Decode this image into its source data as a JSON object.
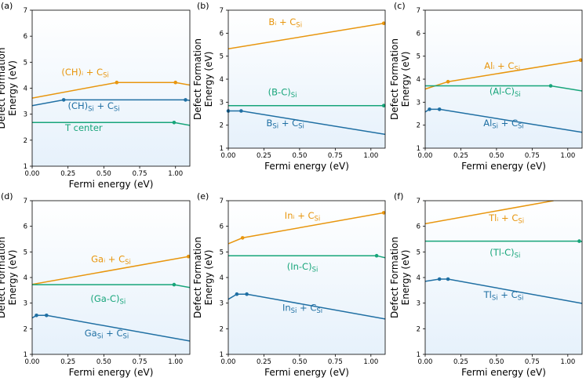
{
  "colors": {
    "orange": "#E8960E",
    "blue": "#1F6FA3",
    "green": "#17A57A",
    "panel_top": "#ffffff",
    "panel_bottom": "#e6f1fb"
  },
  "chart_data": [
    {
      "type": "line",
      "panel_label": "(a)",
      "xlabel": "Fermi energy (eV)",
      "ylabel": "Defect Formation Energy (eV)",
      "xlim": [
        0,
        1.1
      ],
      "ylim": [
        1,
        7
      ],
      "xticks": [
        "0.00",
        "0.25",
        "0.50",
        "0.75",
        "1.00"
      ],
      "xtick_values": [
        0,
        0.25,
        0.5,
        0.75,
        1.0
      ],
      "yticks": [
        "1",
        "2",
        "3",
        "4",
        "5",
        "6",
        "7"
      ],
      "ytick_values": [
        1,
        2,
        3,
        4,
        5,
        6,
        7
      ],
      "series": [
        {
          "name": "(CH)i + CSi",
          "color": "orange",
          "x": [
            0,
            0.59,
            1.0,
            1.1
          ],
          "y": [
            3.62,
            4.22,
            4.22,
            4.12
          ],
          "markers": [
            1,
            2
          ]
        },
        {
          "name": "(CH)Si + CSi",
          "color": "blue",
          "x": [
            0,
            0.22,
            1.07,
            1.1
          ],
          "y": [
            3.33,
            3.55,
            3.55,
            3.53
          ],
          "markers": [
            1,
            2
          ]
        },
        {
          "name": "T center",
          "color": "green",
          "x": [
            0,
            0.99,
            1.1
          ],
          "y": [
            2.68,
            2.68,
            2.57
          ],
          "markers": [
            1
          ]
        }
      ],
      "annotations": [
        {
          "text": "(CH)ᵢ + C",
          "sub": "Si",
          "color": "orange",
          "x": 0.37,
          "y": 4.5
        },
        {
          "text": "(CH)",
          "sub": "Si",
          "after": " + C",
          "sub2": "Si",
          "color": "blue",
          "x": 0.43,
          "y": 3.2
        },
        {
          "text": "T center",
          "color": "green",
          "x": 0.36,
          "y": 2.35
        }
      ]
    },
    {
      "type": "line",
      "panel_label": "(b)",
      "xlabel": "Fermi energy (eV)",
      "ylabel": "Defect Formation Energy (eV)",
      "xlim": [
        0,
        1.1
      ],
      "ylim": [
        1,
        7
      ],
      "xticks": [
        "0.00",
        "0.25",
        "0.50",
        "0.75",
        "1.00"
      ],
      "xtick_values": [
        0,
        0.25,
        0.5,
        0.75,
        1.0
      ],
      "yticks": [
        "1",
        "2",
        "3",
        "4",
        "5",
        "6",
        "7"
      ],
      "ytick_values": [
        1,
        2,
        3,
        4,
        5,
        6,
        7
      ],
      "series": [
        {
          "name": "Bi + CSi",
          "color": "orange",
          "x": [
            0,
            1.09
          ],
          "y": [
            5.32,
            6.43
          ],
          "markers": [
            1
          ]
        },
        {
          "name": "(B-C)Si",
          "color": "green",
          "x": [
            0,
            1.09,
            1.1
          ],
          "y": [
            2.85,
            2.85,
            2.84
          ],
          "markers": [
            1
          ]
        },
        {
          "name": "BSi + CSi",
          "color": "blue",
          "x": [
            0,
            0.09,
            1.1
          ],
          "y": [
            2.62,
            2.62,
            1.6
          ],
          "markers": [
            0,
            1
          ]
        }
      ],
      "annotations": [
        {
          "text": "Bᵢ + C",
          "sub": "Si",
          "color": "orange",
          "x": 0.4,
          "y": 6.35
        },
        {
          "text": "(B-C)",
          "sub": "Si",
          "color": "green",
          "x": 0.38,
          "y": 3.3
        },
        {
          "text": "B",
          "sub": "Si",
          "after": " + C",
          "sub2": "Si",
          "color": "blue",
          "x": 0.4,
          "y": 1.95
        }
      ]
    },
    {
      "type": "line",
      "panel_label": "(c)",
      "xlabel": "Fermi energy (eV)",
      "ylabel": "Defect Formation Energy (eV)",
      "xlim": [
        0,
        1.1
      ],
      "ylim": [
        1,
        7
      ],
      "xticks": [
        "0.00",
        "0.25",
        "0.50",
        "0.75",
        "1.00"
      ],
      "xtick_values": [
        0,
        0.25,
        0.5,
        0.75,
        1.0
      ],
      "yticks": [
        "1",
        "2",
        "3",
        "4",
        "5",
        "6",
        "7"
      ],
      "ytick_values": [
        1,
        2,
        3,
        4,
        5,
        6,
        7
      ],
      "series": [
        {
          "name": "Ali + CSi",
          "color": "orange",
          "x": [
            0,
            0.16,
            1.09
          ],
          "y": [
            3.57,
            3.89,
            4.83
          ],
          "markers": [
            1,
            2
          ]
        },
        {
          "name": "(Al-C)Si",
          "color": "green",
          "x": [
            0,
            0.88,
            1.1
          ],
          "y": [
            3.71,
            3.71,
            3.49
          ],
          "markers": [
            1
          ]
        },
        {
          "name": "AlSi + CSi",
          "color": "blue",
          "x": [
            0,
            0.03,
            0.1,
            1.1
          ],
          "y": [
            2.57,
            2.69,
            2.69,
            1.69
          ],
          "markers": [
            1,
            2
          ]
        }
      ],
      "annotations": [
        {
          "text": "Alᵢ + C",
          "sub": "Si",
          "color": "orange",
          "x": 0.54,
          "y": 4.45
        },
        {
          "text": "(Al-C)",
          "sub": "Si",
          "color": "green",
          "x": 0.56,
          "y": 3.33
        },
        {
          "text": "Al",
          "sub": "Si",
          "after": " + C",
          "sub2": "Si",
          "color": "blue",
          "x": 0.55,
          "y": 1.95
        }
      ]
    },
    {
      "type": "line",
      "panel_label": "(d)",
      "xlabel": "Fermi energy (eV)",
      "ylabel": "Defect Formation Energy (eV)",
      "xlim": [
        0,
        1.1
      ],
      "ylim": [
        1,
        7
      ],
      "xticks": [
        "0.00",
        "0.25",
        "0.50",
        "0.75",
        "1.00"
      ],
      "xtick_values": [
        0,
        0.25,
        0.5,
        0.75,
        1.0
      ],
      "yticks": [
        "1",
        "2",
        "3",
        "4",
        "5",
        "6",
        "7"
      ],
      "ytick_values": [
        1,
        2,
        3,
        4,
        5,
        6,
        7
      ],
      "series": [
        {
          "name": "Gai + CSi",
          "color": "orange",
          "x": [
            0,
            1.09
          ],
          "y": [
            3.73,
            4.82
          ],
          "markers": [
            1
          ]
        },
        {
          "name": "(Ga-C)Si",
          "color": "green",
          "x": [
            0,
            0.99,
            1.1
          ],
          "y": [
            3.72,
            3.72,
            3.61
          ],
          "markers": [
            1
          ]
        },
        {
          "name": "GaSi + CSi",
          "color": "blue",
          "x": [
            0,
            0.03,
            0.1,
            1.1
          ],
          "y": [
            2.42,
            2.52,
            2.52,
            1.52
          ],
          "markers": [
            1,
            2
          ]
        }
      ],
      "annotations": [
        {
          "text": "Gaᵢ + C",
          "sub": "Si",
          "color": "orange",
          "x": 0.55,
          "y": 4.6
        },
        {
          "text": "(Ga-C)",
          "sub": "Si",
          "color": "green",
          "x": 0.53,
          "y": 3.05
        },
        {
          "text": "Ga",
          "sub": "Si",
          "after": " + C",
          "sub2": "Si",
          "color": "blue",
          "x": 0.52,
          "y": 1.7
        }
      ]
    },
    {
      "type": "line",
      "panel_label": "(e)",
      "xlabel": "Fermi energy (eV)",
      "ylabel": "Defect Formation Energy (eV)",
      "xlim": [
        0,
        1.1
      ],
      "ylim": [
        1,
        7
      ],
      "xticks": [
        "0.00",
        "0.25",
        "0.50",
        "0.75",
        "1.00"
      ],
      "xtick_values": [
        0,
        0.25,
        0.5,
        0.75,
        1.0
      ],
      "yticks": [
        "1",
        "2",
        "3",
        "4",
        "5",
        "6",
        "7"
      ],
      "ytick_values": [
        1,
        2,
        3,
        4,
        5,
        6,
        7
      ],
      "series": [
        {
          "name": "Ini + CSi",
          "color": "orange",
          "x": [
            0,
            0.1,
            1.09
          ],
          "y": [
            5.32,
            5.55,
            6.53
          ],
          "markers": [
            1,
            2
          ]
        },
        {
          "name": "(In-C)Si",
          "color": "green",
          "x": [
            0,
            1.04,
            1.1
          ],
          "y": [
            4.85,
            4.85,
            4.77
          ],
          "markers": [
            1
          ]
        },
        {
          "name": "InSi + CSi",
          "color": "blue",
          "x": [
            0,
            0.06,
            0.13,
            1.1
          ],
          "y": [
            3.15,
            3.35,
            3.35,
            2.38
          ],
          "markers": [
            1,
            2
          ]
        }
      ],
      "annotations": [
        {
          "text": "Inᵢ + C",
          "sub": "Si",
          "color": "orange",
          "x": 0.52,
          "y": 6.3
        },
        {
          "text": "(In-C)",
          "sub": "Si",
          "color": "green",
          "x": 0.52,
          "y": 4.3
        },
        {
          "text": "In",
          "sub": "Si",
          "after": " + C",
          "sub2": "Si",
          "color": "blue",
          "x": 0.52,
          "y": 2.7
        }
      ]
    },
    {
      "type": "line",
      "panel_label": "(f)",
      "xlabel": "Fermi energy (eV)",
      "ylabel": "Defect Formation Energy (eV)",
      "xlim": [
        0,
        1.1
      ],
      "ylim": [
        1,
        7
      ],
      "xticks": [
        "0.00",
        "0.25",
        "0.50",
        "0.75",
        "1.00"
      ],
      "xtick_values": [
        0,
        0.25,
        0.5,
        0.75,
        1.0
      ],
      "yticks": [
        "1",
        "2",
        "3",
        "4",
        "5",
        "6",
        "7"
      ],
      "ytick_values": [
        1,
        2,
        3,
        4,
        5,
        6,
        7
      ],
      "series": [
        {
          "name": "Tli + CSi",
          "color": "orange",
          "x": [
            0,
            0.9
          ],
          "y": [
            6.1,
            7.0
          ],
          "markers": []
        },
        {
          "name": "(Tl-C)Si",
          "color": "green",
          "x": [
            0,
            1.08,
            1.1
          ],
          "y": [
            5.42,
            5.42,
            5.4
          ],
          "markers": [
            1
          ]
        },
        {
          "name": "TlSi + CSi",
          "color": "blue",
          "x": [
            0,
            0.1,
            0.16,
            1.1
          ],
          "y": [
            3.85,
            3.94,
            3.94,
            2.99
          ],
          "markers": [
            1,
            2
          ]
        }
      ],
      "annotations": [
        {
          "text": "Tlᵢ + C",
          "sub": "Si",
          "color": "orange",
          "x": 0.57,
          "y": 6.2
        },
        {
          "text": "(Tl-C)",
          "sub": "Si",
          "color": "green",
          "x": 0.56,
          "y": 4.85
        },
        {
          "text": "Tl",
          "sub": "Si",
          "after": " + C",
          "sub2": "Si",
          "color": "blue",
          "x": 0.55,
          "y": 3.2
        }
      ]
    }
  ]
}
